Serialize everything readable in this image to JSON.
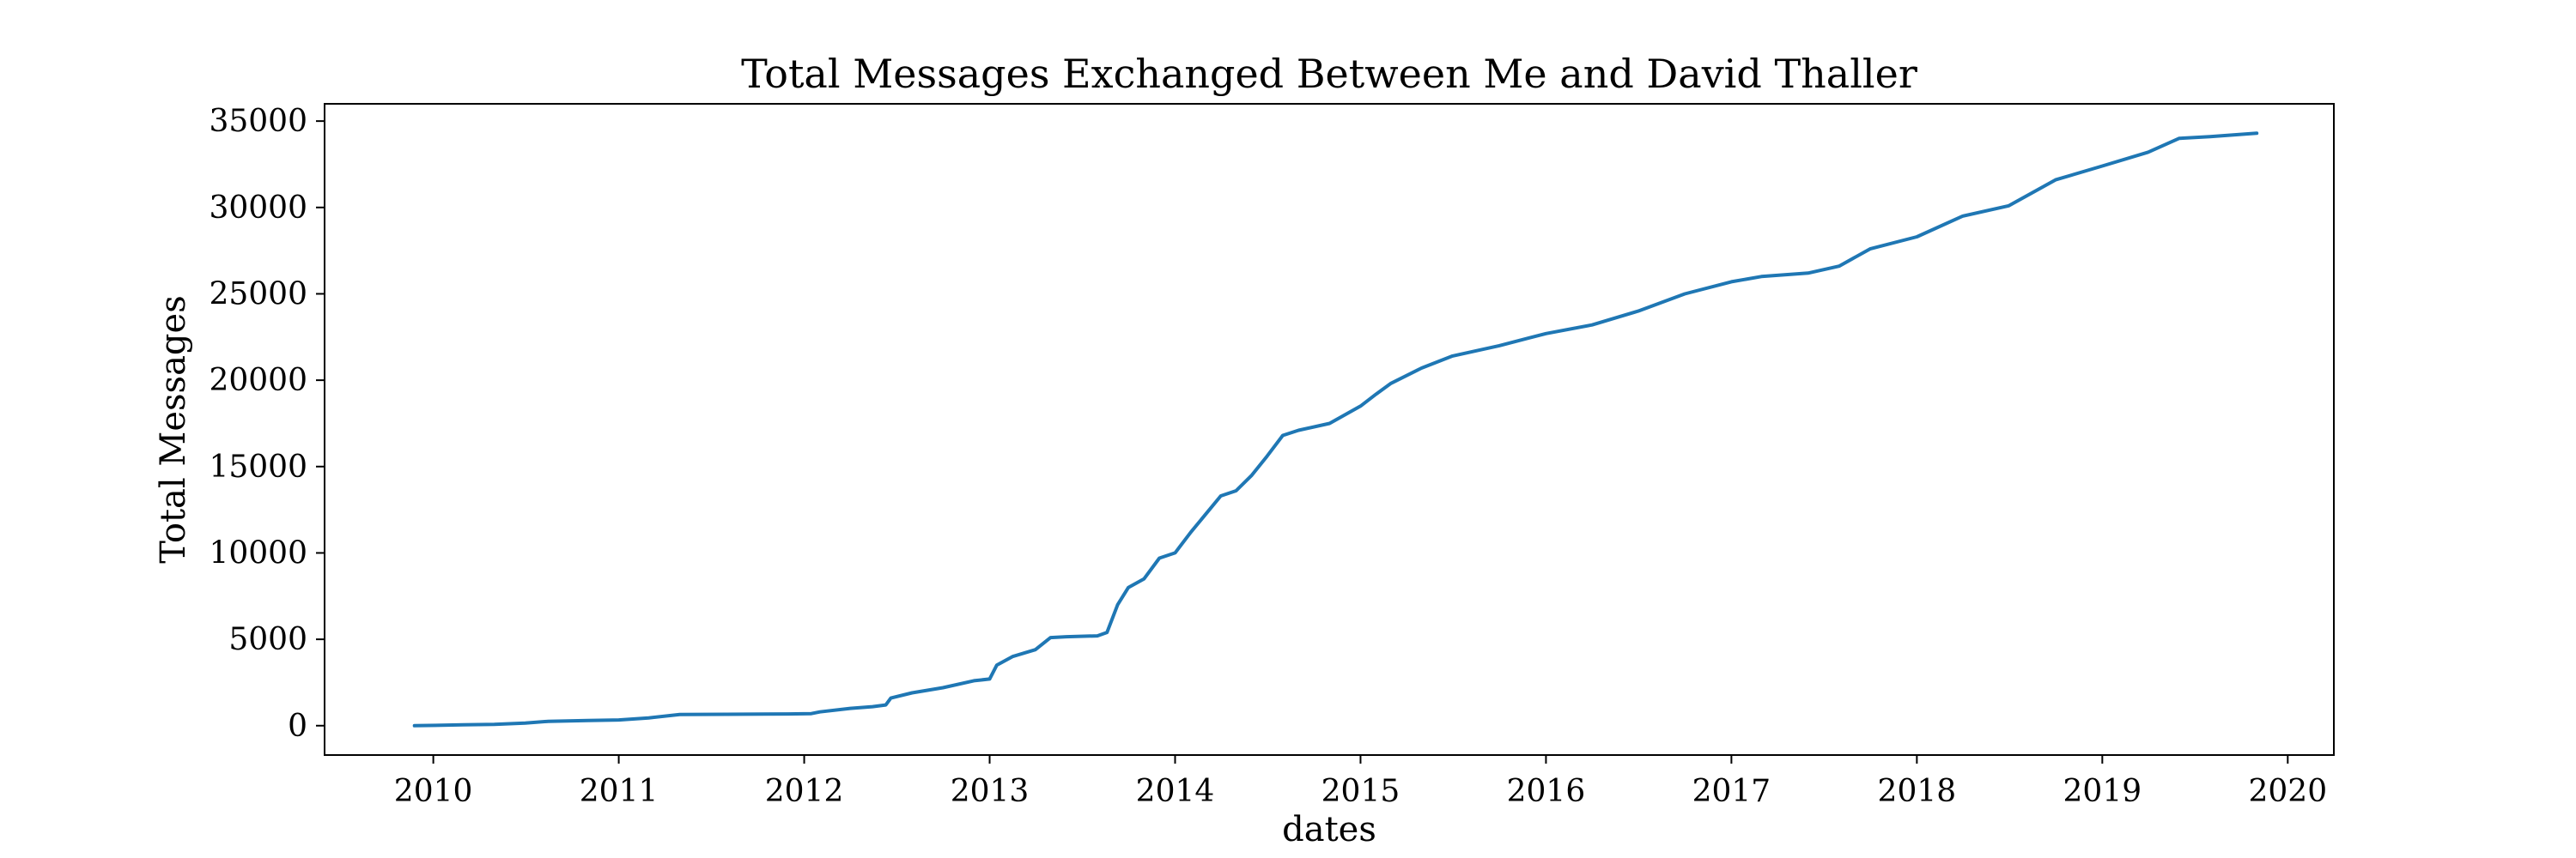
{
  "chart_data": {
    "type": "line",
    "title": "Total Messages Exchanged Between Me and David Thaller",
    "xlabel": "dates",
    "ylabel": "Total Messages",
    "x_ticks": [
      "2010",
      "2011",
      "2012",
      "2013",
      "2014",
      "2015",
      "2016",
      "2017",
      "2018",
      "2019",
      "2020"
    ],
    "y_ticks": [
      0,
      5000,
      10000,
      15000,
      20000,
      25000,
      30000,
      35000
    ],
    "xlim": [
      "2009-06-01",
      "2020-04-01"
    ],
    "ylim": [
      -1700,
      36000
    ],
    "grid": false,
    "legend": "none",
    "colors": {
      "series": "#1f77b4"
    },
    "series": [
      {
        "x": [
          "2009-11-25",
          "2010-03-01",
          "2010-05-01",
          "2010-07-01",
          "2010-08-15",
          "2010-11-01",
          "2011-01-01",
          "2011-03-01",
          "2011-05-01",
          "2011-08-01",
          "2011-12-01",
          "2012-01-15",
          "2012-02-01",
          "2012-04-01",
          "2012-05-15",
          "2012-06-10",
          "2012-06-20",
          "2012-08-01",
          "2012-10-01",
          "2012-12-01",
          "2013-01-01",
          "2013-01-15",
          "2013-02-15",
          "2013-04-01",
          "2013-05-01",
          "2013-06-01",
          "2013-08-01",
          "2013-08-20",
          "2013-09-10",
          "2013-10-01",
          "2013-11-01",
          "2013-12-01",
          "2014-01-01",
          "2014-02-01",
          "2014-03-01",
          "2014-04-01",
          "2014-05-01",
          "2014-06-01",
          "2014-07-01",
          "2014-08-01",
          "2014-09-01",
          "2014-11-01",
          "2015-01-01",
          "2015-02-01",
          "2015-03-01",
          "2015-05-01",
          "2015-07-01",
          "2015-10-01",
          "2016-01-01",
          "2016-04-01",
          "2016-07-01",
          "2016-10-01",
          "2017-01-01",
          "2017-03-01",
          "2017-06-01",
          "2017-08-01",
          "2017-10-01",
          "2018-01-01",
          "2018-04-01",
          "2018-07-01",
          "2018-10-01",
          "2019-01-01",
          "2019-04-01",
          "2019-06-01",
          "2019-08-01",
          "2019-11-01"
        ],
        "y": [
          0,
          50,
          80,
          150,
          250,
          300,
          330,
          450,
          650,
          660,
          680,
          700,
          800,
          1000,
          1100,
          1200,
          1600,
          1900,
          2200,
          2600,
          2700,
          3500,
          4000,
          4400,
          5100,
          5150,
          5200,
          5400,
          7000,
          8000,
          8500,
          9700,
          10000,
          11200,
          12200,
          13300,
          13600,
          14500,
          15600,
          16800,
          17100,
          17500,
          18500,
          19200,
          19800,
          20700,
          21400,
          22000,
          22700,
          23200,
          24000,
          25000,
          25700,
          26000,
          26200,
          26600,
          27600,
          28300,
          29500,
          30100,
          31600,
          32400,
          33200,
          34000,
          34100,
          34300
        ]
      }
    ]
  }
}
